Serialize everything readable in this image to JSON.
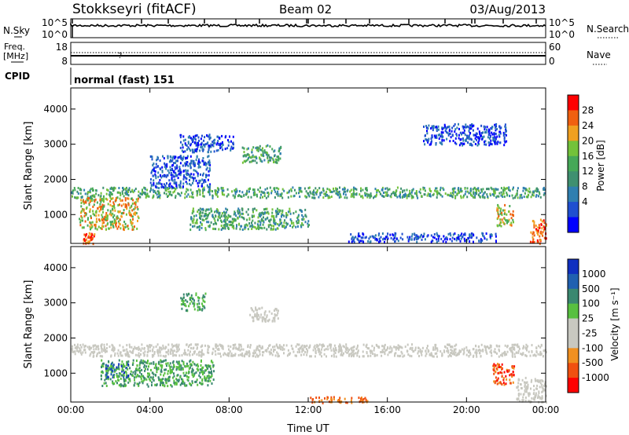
{
  "header": {
    "station": "Stokkseyri (fitACF)",
    "beam": "Beam 02",
    "date": "03/Aug/2013"
  },
  "panel_labels": {
    "nsky": "N.Sky",
    "nsearch": "N.Search",
    "freq": "Freq.",
    "freq_unit": "[MHz]",
    "nave": "Nave",
    "cpid": "CPID",
    "cpid_value": "normal (fast) 151"
  },
  "scales": {
    "noise_left_top": "10^5",
    "noise_left_bottom": "10^0",
    "noise_right_top": "10^5",
    "noise_right_bottom": "10^0",
    "freq_left_top": "18",
    "freq_left_bottom": "8",
    "nave_right_top": "60",
    "nave_right_bottom": "0"
  },
  "colors": {
    "power": [
      "#0000ff",
      "#1f4fd0",
      "#2f7fb0",
      "#3f9070",
      "#46a858",
      "#73c23a",
      "#f0a020",
      "#f06010",
      "#ff0000"
    ],
    "velocity": [
      "#1030c0",
      "#2060b0",
      "#3a8870",
      "#58c040",
      "#c8c8c0",
      "#c8c8c0",
      "#f09020",
      "#f05010",
      "#ff0000"
    ]
  },
  "chart_data": [
    {
      "type": "heatmap",
      "title": "Power",
      "ylabel": "Slant Range [km]",
      "ylim": [
        180,
        4600
      ],
      "xlim": [
        0,
        24
      ],
      "yticks": [
        "1000",
        "2000",
        "3000",
        "4000"
      ],
      "xticks": [
        "00:00",
        "04:00",
        "08:00",
        "12:00",
        "16:00",
        "20:00",
        "00:00"
      ],
      "colorbar": {
        "label": "Power [dB]",
        "ticks": [
          "4",
          "8",
          "12",
          "16",
          "20",
          "24",
          "28"
        ]
      },
      "echo_regions": [
        {
          "t0": 0.0,
          "t1": 24.0,
          "r0": 1500,
          "r1": 1800,
          "level": "medium"
        },
        {
          "t0": 0.4,
          "t1": 3.4,
          "r0": 600,
          "r1": 1500,
          "level": "high"
        },
        {
          "t0": 0.6,
          "t1": 1.2,
          "r0": 200,
          "r1": 500,
          "level": "very high"
        },
        {
          "t0": 4.0,
          "t1": 7.0,
          "r0": 1800,
          "r1": 2700,
          "level": "low"
        },
        {
          "t0": 5.5,
          "t1": 8.2,
          "r0": 2800,
          "r1": 3300,
          "level": "low"
        },
        {
          "t0": 8.6,
          "t1": 10.6,
          "r0": 2500,
          "r1": 3000,
          "level": "medium"
        },
        {
          "t0": 6.0,
          "t1": 12.0,
          "r0": 600,
          "r1": 1200,
          "level": "medium"
        },
        {
          "t0": 14.0,
          "t1": 21.5,
          "r0": 250,
          "r1": 500,
          "level": "low"
        },
        {
          "t0": 17.8,
          "t1": 22.0,
          "r0": 3000,
          "r1": 3600,
          "level": "low"
        },
        {
          "t0": 21.5,
          "t1": 22.4,
          "r0": 700,
          "r1": 1300,
          "level": "high"
        },
        {
          "t0": 23.2,
          "t1": 24.0,
          "r0": 200,
          "r1": 900,
          "level": "very high"
        }
      ]
    },
    {
      "type": "heatmap",
      "title": "Velocity",
      "ylabel": "Slant Range [km]",
      "xlabel": "Time UT",
      "ylim": [
        180,
        4600
      ],
      "xlim": [
        0,
        24
      ],
      "yticks": [
        "1000",
        "2000",
        "3000",
        "4000"
      ],
      "xticks": [
        "00:00",
        "04:00",
        "08:00",
        "12:00",
        "16:00",
        "20:00",
        "00:00"
      ],
      "colorbar": {
        "label": "Velocity [m s⁻¹]",
        "ticks": [
          "1000",
          "500",
          "100",
          "25",
          "-25",
          "-100",
          "-500",
          "-1000"
        ]
      },
      "echo_regions": [
        {
          "t0": 0.0,
          "t1": 24.0,
          "r0": 1500,
          "r1": 1850,
          "level": "ground scatter"
        },
        {
          "t0": 1.5,
          "t1": 7.2,
          "r0": 650,
          "r1": 1400,
          "level": "positive"
        },
        {
          "t0": 1.7,
          "t1": 2.9,
          "r0": 900,
          "r1": 1300,
          "level": "strongly positive"
        },
        {
          "t0": 5.5,
          "t1": 6.8,
          "r0": 2800,
          "r1": 3300,
          "level": "positive"
        },
        {
          "t0": 9.0,
          "t1": 10.5,
          "r0": 2500,
          "r1": 2900,
          "level": "ground scatter"
        },
        {
          "t0": 12.0,
          "t1": 15.0,
          "r0": 180,
          "r1": 350,
          "level": "negative"
        },
        {
          "t0": 21.3,
          "t1": 22.4,
          "r0": 700,
          "r1": 1300,
          "level": "strongly negative"
        },
        {
          "t0": 22.5,
          "t1": 24.0,
          "r0": 200,
          "r1": 900,
          "level": "ground scatter"
        }
      ]
    }
  ]
}
